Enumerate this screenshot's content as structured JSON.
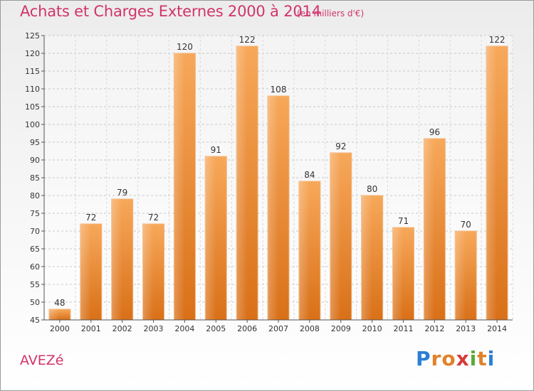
{
  "title": "Achats et Charges Externes 2000 à 2014",
  "subtitle": "(en milliers d'€)",
  "commune": "AVEZé",
  "logo": {
    "letters": [
      "P",
      "r",
      "o",
      "x",
      "i",
      "t",
      "i"
    ],
    "colors": [
      "#2a7fd4",
      "#e0822a",
      "#e0822a",
      "#d63b3b",
      "#5aab3a",
      "#e0822a",
      "#2a7fd4"
    ]
  },
  "chart_data": {
    "type": "bar",
    "categories": [
      "2000",
      "2001",
      "2002",
      "2003",
      "2004",
      "2005",
      "2006",
      "2007",
      "2008",
      "2009",
      "2010",
      "2011",
      "2012",
      "2013",
      "2014"
    ],
    "values": [
      48,
      72,
      79,
      72,
      120,
      91,
      122,
      108,
      84,
      92,
      80,
      71,
      96,
      70,
      122
    ],
    "ylim": [
      45,
      125
    ],
    "yticks": [
      45,
      50,
      55,
      60,
      65,
      70,
      75,
      80,
      85,
      90,
      95,
      100,
      105,
      110,
      115,
      120,
      125
    ],
    "grid": true,
    "bar_color": "#f28c28"
  }
}
